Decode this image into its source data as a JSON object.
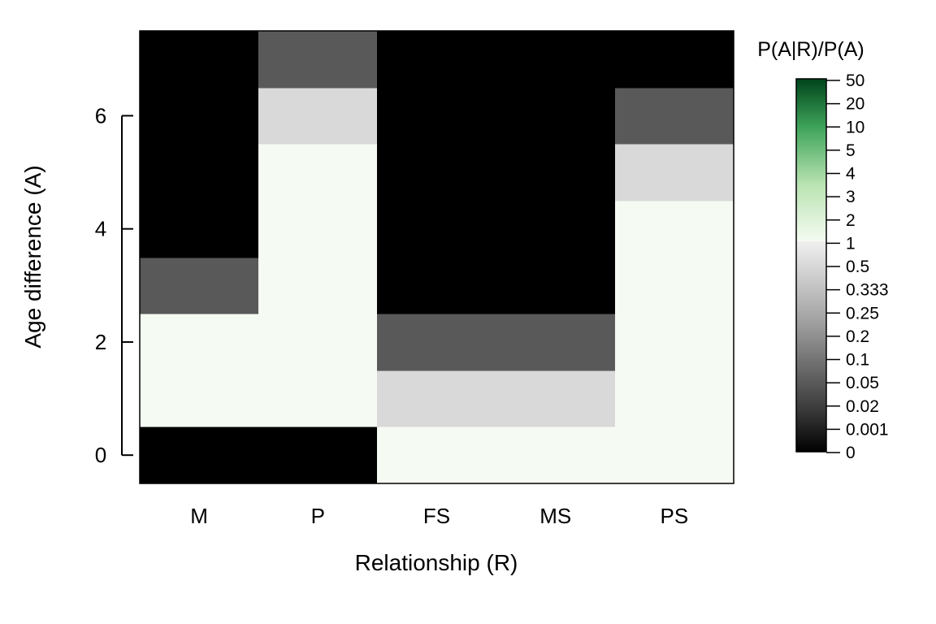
{
  "chart_data": {
    "type": "heatmap",
    "title": "",
    "xlabel": "Relationship (R)",
    "ylabel": "Age difference (A)",
    "x_categories": [
      "M",
      "P",
      "FS",
      "MS",
      "PS"
    ],
    "y_values": [
      0,
      1,
      2,
      3,
      4,
      5,
      6,
      7
    ],
    "y_ticks": [
      0,
      2,
      4,
      6
    ],
    "ylim": [
      -0.5,
      7.5
    ],
    "values": [
      [
        0,
        1,
        1,
        0.05,
        0,
        0,
        0,
        0
      ],
      [
        0,
        1,
        1,
        1,
        1,
        1,
        0.5,
        0.05
      ],
      [
        1,
        0.5,
        0.05,
        0,
        0,
        0,
        0,
        0
      ],
      [
        1,
        0.5,
        0.05,
        0,
        0,
        0,
        0,
        0
      ],
      [
        1,
        1,
        1,
        1,
        1,
        0.5,
        0.05,
        0
      ]
    ],
    "legend": {
      "title": "P(A|R)/P(A)",
      "labels": [
        "50",
        "20",
        "10",
        "5",
        "4",
        "3",
        "2",
        "1",
        "0.5",
        "0.333",
        "0.25",
        "0.2",
        "0.1",
        "0.05",
        "0.02",
        "0.001",
        "0"
      ],
      "colors": {
        "zero": "#000000",
        "very_low": "#595959",
        "low": "#d9d9d9",
        "one": "#f5fbf2",
        "high": "#00441b"
      }
    },
    "grid": false
  }
}
